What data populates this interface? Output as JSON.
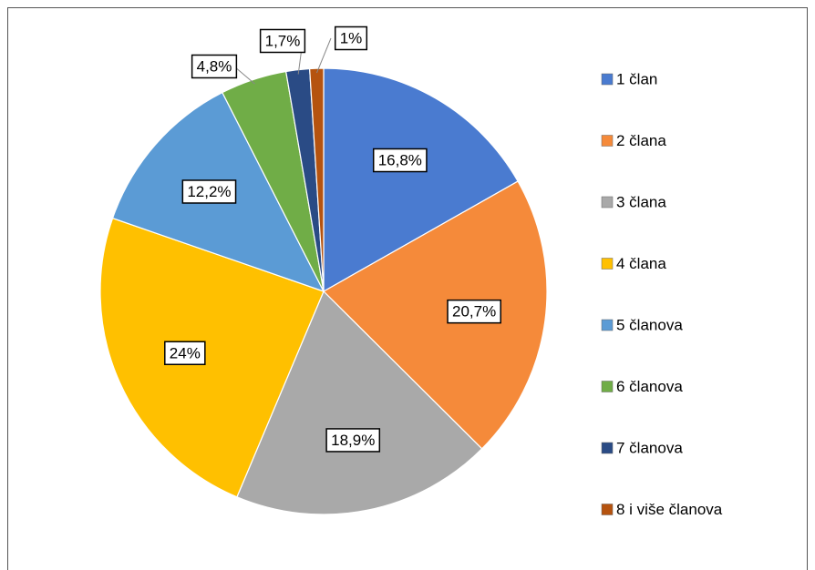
{
  "chart_data": {
    "type": "pie",
    "categories": [
      "1 član",
      "2 člana",
      "3 člana",
      "4 člana",
      "5 članova",
      "6 članova",
      "7 članova",
      "8 i više članova"
    ],
    "values": [
      16.8,
      20.7,
      18.9,
      24,
      12.2,
      4.8,
      1.7,
      1
    ],
    "value_labels": [
      "16,8%",
      "20,7%",
      "18,9%",
      "24%",
      "12,2%",
      "4,8%",
      "1,7%",
      "1%"
    ],
    "colors": [
      "#4a7bd0",
      "#f58a3a",
      "#a9a9a9",
      "#ffc000",
      "#5b9bd5",
      "#70ad47",
      "#2a4b85",
      "#b5530f"
    ],
    "legend": "right"
  }
}
